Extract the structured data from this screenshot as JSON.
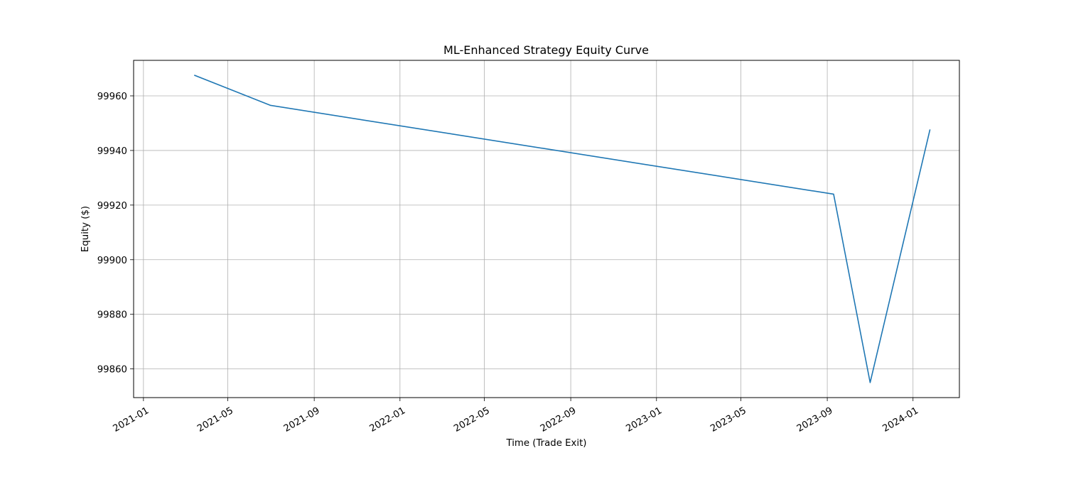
{
  "chart_data": {
    "type": "line",
    "title": "ML-Enhanced Strategy Equity Curve",
    "xlabel": "Time (Trade Exit)",
    "ylabel": "Equity ($)",
    "x_axis_type": "date",
    "xlim": [
      "2020-12-18",
      "2024-03-07"
    ],
    "ylim": [
      99849.5,
      99973.0
    ],
    "x_ticks": [
      "2021-01-01",
      "2021-05-01",
      "2021-09-01",
      "2022-01-01",
      "2022-05-01",
      "2022-09-01",
      "2023-01-01",
      "2023-05-01",
      "2023-09-01",
      "2024-01-01"
    ],
    "x_tick_labels": [
      "2021-01",
      "2021-05",
      "2021-09",
      "2022-01",
      "2022-05",
      "2022-09",
      "2023-01",
      "2023-05",
      "2023-09",
      "2024-01"
    ],
    "y_ticks": [
      99860,
      99880,
      99900,
      99920,
      99940,
      99960
    ],
    "y_tick_labels": [
      "99860",
      "99880",
      "99900",
      "99920",
      "99940",
      "99960"
    ],
    "grid": true,
    "series": [
      {
        "color": "#1f77b4",
        "x": [
          "2021-03-15",
          "2021-07-01",
          "2023-09-10",
          "2023-11-01",
          "2024-01-25"
        ],
        "y": [
          99967.5,
          99956.5,
          99924.0,
          99855.0,
          99947.5
        ]
      }
    ]
  }
}
